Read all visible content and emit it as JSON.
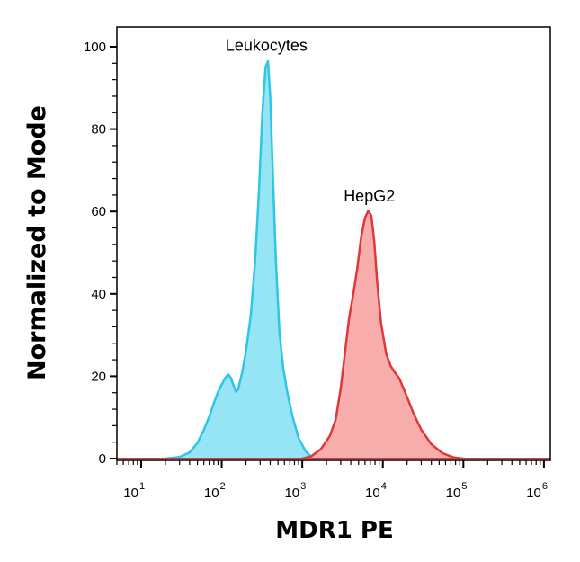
{
  "chart_data": {
    "type": "area",
    "xlabel": "MDR1 PE",
    "ylabel": "Normalized to Mode",
    "x_scale": "log",
    "x_range": [
      5,
      1200000
    ],
    "ylim": [
      0,
      100
    ],
    "y_ticks": [
      0,
      20,
      40,
      60,
      80,
      100
    ],
    "x_ticks": [
      {
        "value": 10,
        "base": "10",
        "exp": "1"
      },
      {
        "value": 100,
        "base": "10",
        "exp": "2"
      },
      {
        "value": 1000,
        "base": "10",
        "exp": "3"
      },
      {
        "value": 10000,
        "base": "10",
        "exp": "4"
      },
      {
        "value": 100000,
        "base": "10",
        "exp": "5"
      },
      {
        "value": 1000000,
        "base": "10",
        "exp": "6"
      }
    ],
    "grid": false,
    "legend": "none",
    "series": [
      {
        "name": "Leukocytes",
        "fill": "#8fe4f4",
        "stroke": "#2ec6e6",
        "points": [
          [
            20,
            0
          ],
          [
            30,
            0.4
          ],
          [
            40,
            1.5
          ],
          [
            50,
            3.8
          ],
          [
            60,
            7
          ],
          [
            70,
            10.2
          ],
          [
            80,
            13.5
          ],
          [
            90,
            16.2
          ],
          [
            100,
            18
          ],
          [
            110,
            19.5
          ],
          [
            120,
            20.5
          ],
          [
            130,
            19.6
          ],
          [
            140,
            17.8
          ],
          [
            150,
            16.2
          ],
          [
            160,
            16.8
          ],
          [
            180,
            21
          ],
          [
            200,
            26
          ],
          [
            230,
            35
          ],
          [
            260,
            48
          ],
          [
            290,
            65
          ],
          [
            320,
            84
          ],
          [
            350,
            95
          ],
          [
            375,
            96.5
          ],
          [
            400,
            88
          ],
          [
            430,
            70
          ],
          [
            470,
            48
          ],
          [
            520,
            31
          ],
          [
            580,
            22
          ],
          [
            650,
            16.2
          ],
          [
            750,
            10.5
          ],
          [
            900,
            5
          ],
          [
            1100,
            1.8
          ],
          [
            1300,
            0.4
          ],
          [
            1500,
            0
          ]
        ]
      },
      {
        "name": "HepG2",
        "fill": "#f8a9a9",
        "stroke": "#e03838",
        "points": [
          [
            1000,
            0
          ],
          [
            1300,
            0.6
          ],
          [
            1700,
            2.3
          ],
          [
            2200,
            5.5
          ],
          [
            2600,
            9.5
          ],
          [
            3000,
            17
          ],
          [
            3400,
            26
          ],
          [
            3800,
            34
          ],
          [
            4300,
            40
          ],
          [
            4800,
            46
          ],
          [
            5400,
            54
          ],
          [
            6000,
            58.5
          ],
          [
            6600,
            60.2
          ],
          [
            7200,
            59
          ],
          [
            7800,
            53
          ],
          [
            8500,
            43
          ],
          [
            9500,
            33
          ],
          [
            11000,
            25.5
          ],
          [
            12500,
            22.5
          ],
          [
            14000,
            21
          ],
          [
            16000,
            19.5
          ],
          [
            19000,
            16
          ],
          [
            24000,
            11
          ],
          [
            30000,
            7
          ],
          [
            40000,
            3.5
          ],
          [
            55000,
            1.3
          ],
          [
            75000,
            0.3
          ],
          [
            100000,
            0
          ]
        ]
      }
    ],
    "annotations": [
      {
        "text": "Leukocytes",
        "x": 360,
        "y": 99
      },
      {
        "text": "HepG2",
        "x": 6800,
        "y": 62.5
      }
    ]
  }
}
